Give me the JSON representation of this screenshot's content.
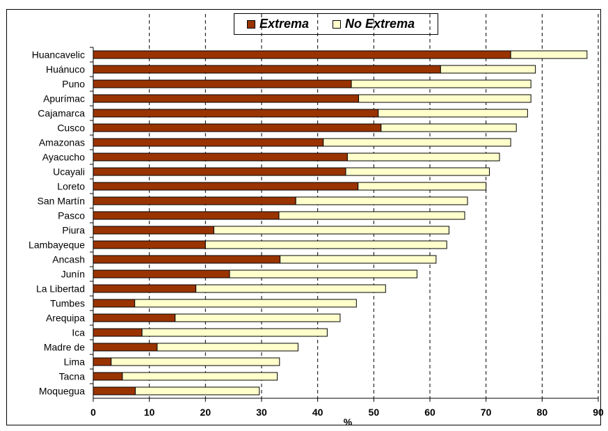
{
  "chart_data": {
    "type": "bar",
    "orientation": "horizontal",
    "stacked": true,
    "xlabel": "%",
    "xlim": [
      0,
      90
    ],
    "xticks": [
      0,
      10,
      20,
      30,
      40,
      50,
      60,
      70,
      80,
      90
    ],
    "grid": "vertical dashed",
    "legend_position": "top",
    "categories": [
      "Huancavelic",
      "Huánuco",
      "Puno",
      "Apurímac",
      "Cajamarca",
      "Cusco",
      "Amazonas",
      "Ayacucho",
      "Ucayali",
      "Loreto",
      "San Martín",
      "Pasco",
      "Piura",
      "Lambayeque",
      "Ancash",
      "Junín",
      "La Libertad",
      "Tumbes",
      "Arequipa",
      "Ica",
      "Madre de",
      "Lima",
      "Tacna",
      "Moquegua"
    ],
    "series": [
      {
        "name": "Extrema",
        "color": "#993300",
        "values": [
          74.4,
          61.9,
          46.0,
          47.3,
          50.8,
          51.3,
          41.0,
          45.3,
          45.0,
          47.2,
          36.1,
          33.1,
          21.5,
          20.0,
          33.3,
          24.3,
          18.3,
          7.4,
          14.6,
          8.7,
          11.4,
          3.2,
          5.2,
          7.5
        ]
      },
      {
        "name": "No Extrema",
        "color": "#FFFFCC",
        "values": [
          13.6,
          16.9,
          32.0,
          30.7,
          26.6,
          24.1,
          33.4,
          27.1,
          25.6,
          22.8,
          30.6,
          33.1,
          41.9,
          43.0,
          27.8,
          33.4,
          33.8,
          39.5,
          29.4,
          33.0,
          25.1,
          30.0,
          27.6,
          22.1
        ]
      }
    ]
  }
}
